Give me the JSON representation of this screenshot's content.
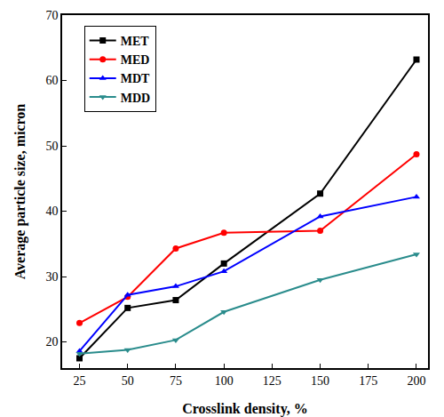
{
  "chart_data": {
    "type": "line",
    "x_label": "Crosslink density, %",
    "y_label": "Average particle size, micron",
    "x": [
      25,
      50,
      75,
      100,
      150,
      200
    ],
    "series": [
      {
        "name": "MET",
        "color": "#000000",
        "marker": "square",
        "values": [
          17.5,
          25.2,
          26.4,
          32.0,
          42.7,
          63.2
        ]
      },
      {
        "name": "MED",
        "color": "#ff0000",
        "marker": "circle",
        "values": [
          22.9,
          26.9,
          34.3,
          36.7,
          37.0,
          48.7
        ]
      },
      {
        "name": "MDT",
        "color": "#0000ff",
        "marker": "triangle-up",
        "values": [
          18.6,
          27.2,
          28.5,
          30.8,
          39.2,
          42.2
        ]
      },
      {
        "name": "MDD",
        "color": "#2a8c8c",
        "marker": "triangle-down",
        "values": [
          18.2,
          18.8,
          20.3,
          24.6,
          29.5,
          33.4
        ]
      }
    ],
    "xlim": [
      16,
      206
    ],
    "xticks": [
      25,
      50,
      75,
      100,
      125,
      150,
      175,
      200
    ],
    "ylim": [
      16,
      70
    ],
    "yticks": [
      20,
      30,
      40,
      50,
      60,
      70
    ],
    "grid": false,
    "legend": "top left"
  }
}
